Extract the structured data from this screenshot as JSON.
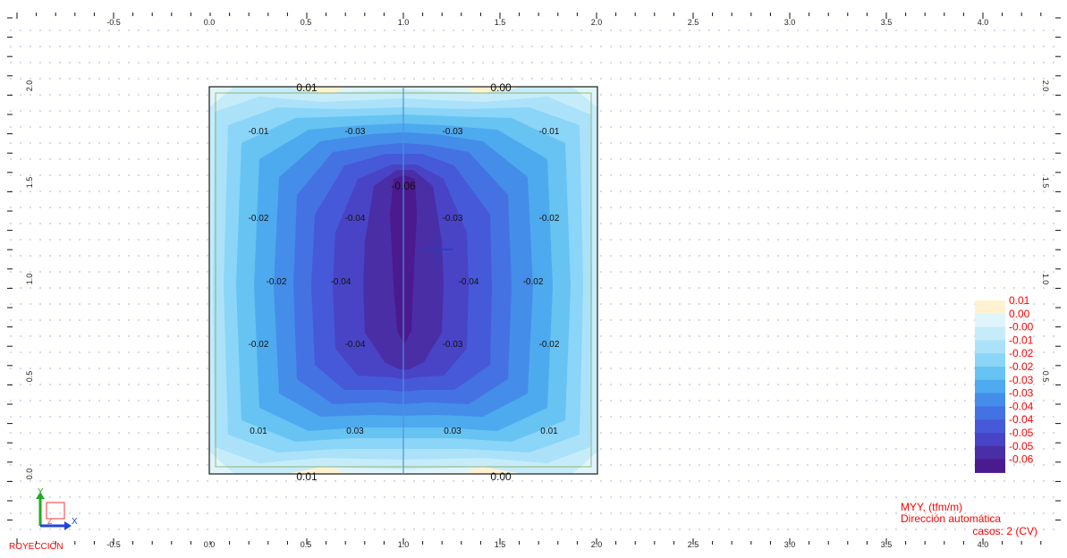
{
  "axis": {
    "x_ticks": [
      "-0.5",
      "0.0",
      "0.5",
      "1.0",
      "1.5",
      "2.0",
      "2.5",
      "3.0",
      "3.5",
      "4.0"
    ],
    "y_ticks": [
      "0.0",
      "0.5",
      "1.0",
      "1.5",
      "2.0"
    ]
  },
  "plate": {
    "edge_labels": {
      "top_left": "0.01",
      "top_right": "0.00",
      "bottom_left": "0.01",
      "bottom_right": "0.00"
    },
    "peak_label": "-0.06",
    "contour_labels": [
      [
        "-0.01",
        "-0.03",
        "-0.03",
        "-0.01"
      ],
      [
        "-0.02",
        "-0.04",
        "-0.03",
        "-0.02"
      ],
      [
        "-0.02",
        "-0.04",
        "-0.04",
        "-0.02"
      ],
      [
        "-0.02",
        "-0.04",
        "-0.03",
        "-0.02"
      ],
      [
        "0.01",
        "0.03",
        "0.03",
        "0.01"
      ]
    ]
  },
  "legend": {
    "labels": [
      "0.01",
      "0.00",
      "-0.00",
      "-0.01",
      "-0.02",
      "-0.02",
      "-0.03",
      "-0.03",
      "-0.04",
      "-0.04",
      "-0.05",
      "-0.05",
      "-0.06"
    ],
    "colors": [
      "#fff2d0",
      "#dff5fb",
      "#c6ecfa",
      "#abe2fa",
      "#8ad5f8",
      "#67c3f2",
      "#4eaaee",
      "#448de9",
      "#4472e3",
      "#4659d9",
      "#4944c6",
      "#4a2ea6",
      "#4b1a8e"
    ]
  },
  "info": {
    "line1": "MYY, (tfm/m)",
    "line2": "Dirección automática",
    "line3": "casos: 2 (CV)"
  },
  "triad": {
    "x_label": "X",
    "y_label": "Y",
    "z_label": "Z"
  },
  "projection_label": "ROYECCIÓN"
}
